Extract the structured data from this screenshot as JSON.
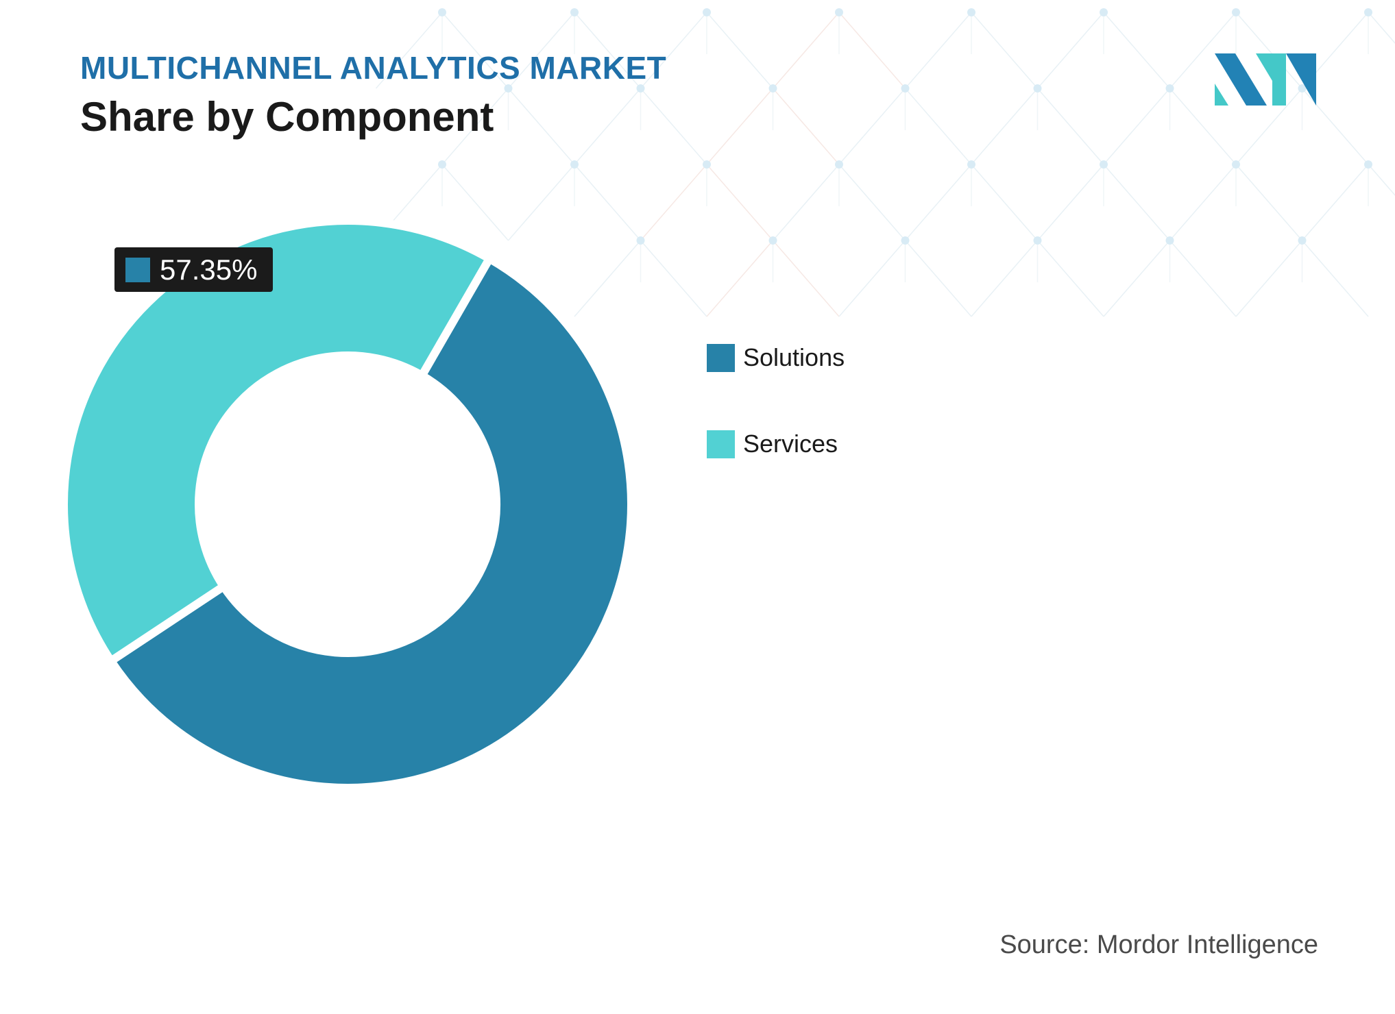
{
  "header": {
    "title": "MULTICHANNEL ANALYTICS MARKET",
    "subtitle": "Share by Component"
  },
  "logo": {
    "icon": "mordor-intelligence-logo-icon",
    "colors": [
      "#2282b5",
      "#44c8c8"
    ]
  },
  "chart_data": {
    "type": "pie",
    "variant": "donut",
    "title": "Share by Component",
    "categories": [
      "Solutions",
      "Services"
    ],
    "values": [
      57.35,
      42.65
    ],
    "colors": [
      "#2782a8",
      "#52d1d3"
    ],
    "data_labels": [
      {
        "category": "Solutions",
        "text": "57.35%"
      }
    ],
    "legend_position": "right"
  },
  "legend": {
    "items": [
      {
        "label": "Solutions",
        "color": "#2782a8"
      },
      {
        "label": "Services",
        "color": "#52d1d3"
      }
    ]
  },
  "source": "Source: Mordor Intelligence"
}
